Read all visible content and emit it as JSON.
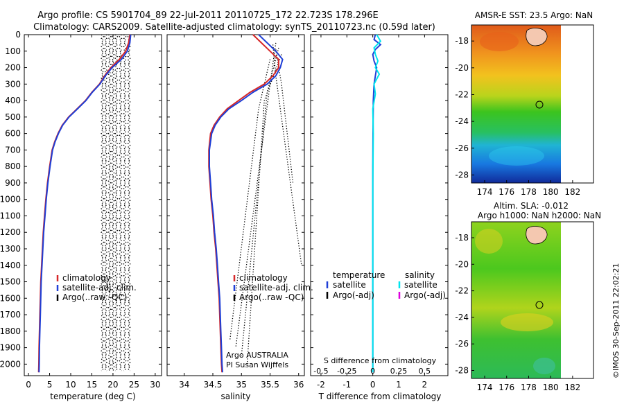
{
  "header": {
    "line1": "Argo profile: CS 5901704_89 22-Jul-2011 20110725_172 22.723S 178.296E",
    "line2": "Climatology: CARS2009. Satellite-adjusted climatology: synTS_20110723.nc (0.59d later)"
  },
  "footer_vertical": "©IMOS 30-Sep-2011 22:02:21",
  "colors": {
    "climatology": "#d62728",
    "satellite": "#1f3fd6",
    "argo": "#000000",
    "salinity_sat": "#00e5ee",
    "salinity_argo": "#dd00dd"
  },
  "chart_data": [
    {
      "id": "temperature",
      "type": "line",
      "xlabel": "temperature (deg C)",
      "ylabel": "",
      "xlim": [
        -1,
        31.5
      ],
      "ylim": [
        2070,
        0
      ],
      "xticks": [
        0,
        5,
        10,
        15,
        20,
        25,
        30
      ],
      "yticks": [
        0,
        100,
        200,
        300,
        400,
        500,
        600,
        700,
        800,
        900,
        1000,
        1100,
        1200,
        1300,
        1400,
        1500,
        1600,
        1700,
        1800,
        1900,
        2000
      ],
      "legend": [
        "climatology",
        "satellite-adj. clim.",
        "Argo(..raw -QC)"
      ],
      "series": [
        {
          "name": "climatology",
          "color": "#d62728",
          "points": [
            [
              24.0,
              0
            ],
            [
              23.7,
              50
            ],
            [
              23.0,
              100
            ],
            [
              21.5,
              150
            ],
            [
              19.5,
              200
            ],
            [
              18.0,
              250
            ],
            [
              16.8,
              300
            ],
            [
              15.0,
              350
            ],
            [
              13.5,
              400
            ],
            [
              11.5,
              450
            ],
            [
              9.5,
              500
            ],
            [
              8.0,
              550
            ],
            [
              7.0,
              600
            ],
            [
              6.2,
              650
            ],
            [
              5.6,
              700
            ],
            [
              5.0,
              800
            ],
            [
              4.5,
              900
            ],
            [
              4.1,
              1000
            ],
            [
              3.8,
              1100
            ],
            [
              3.5,
              1200
            ],
            [
              3.3,
              1300
            ],
            [
              3.1,
              1400
            ],
            [
              2.9,
              1500
            ],
            [
              2.8,
              1600
            ],
            [
              2.7,
              1700
            ],
            [
              2.6,
              1800
            ],
            [
              2.5,
              1900
            ],
            [
              2.45,
              2000
            ],
            [
              2.4,
              2050
            ]
          ]
        },
        {
          "name": "satellite-adj. clim.",
          "color": "#1f3fd6",
          "points": [
            [
              24.2,
              0
            ],
            [
              24.0,
              50
            ],
            [
              23.4,
              100
            ],
            [
              22.0,
              150
            ],
            [
              19.8,
              200
            ],
            [
              18.2,
              250
            ],
            [
              16.9,
              300
            ],
            [
              15.1,
              350
            ],
            [
              13.6,
              400
            ],
            [
              11.6,
              450
            ],
            [
              9.6,
              500
            ],
            [
              8.1,
              550
            ],
            [
              7.1,
              600
            ],
            [
              6.3,
              650
            ],
            [
              5.7,
              700
            ],
            [
              5.1,
              800
            ],
            [
              4.6,
              900
            ],
            [
              4.2,
              1000
            ],
            [
              3.9,
              1100
            ],
            [
              3.6,
              1200
            ],
            [
              3.4,
              1300
            ],
            [
              3.2,
              1400
            ],
            [
              3.0,
              1500
            ],
            [
              2.9,
              1600
            ],
            [
              2.8,
              1700
            ],
            [
              2.7,
              1800
            ],
            [
              2.6,
              1900
            ],
            [
              2.55,
              2000
            ],
            [
              2.5,
              2050
            ]
          ]
        }
      ],
      "argo_dotted_columns": [
        17.5,
        18.3,
        19.2,
        20.0,
        20.8,
        21.8,
        22.8,
        23.8
      ],
      "argo_depth_range": [
        0,
        2040
      ]
    },
    {
      "id": "salinity",
      "type": "line",
      "xlabel": "salinity",
      "xlim": [
        33.7,
        36.1
      ],
      "ylim": [
        2070,
        0
      ],
      "xticks": [
        34,
        34.5,
        35,
        35.5,
        36
      ],
      "legend": [
        "climatology",
        "satellite-adj. clim.",
        "Argo(..raw -QC)"
      ],
      "annotation": [
        "Argo AUSTRALIA",
        "PI Susan Wijffels"
      ],
      "series": [
        {
          "name": "climatology",
          "color": "#d62728",
          "points": [
            [
              35.2,
              0
            ],
            [
              35.35,
              50
            ],
            [
              35.5,
              100
            ],
            [
              35.65,
              150
            ],
            [
              35.65,
              200
            ],
            [
              35.55,
              250
            ],
            [
              35.4,
              300
            ],
            [
              35.15,
              350
            ],
            [
              34.95,
              400
            ],
            [
              34.75,
              450
            ],
            [
              34.62,
              500
            ],
            [
              34.52,
              550
            ],
            [
              34.46,
              600
            ],
            [
              34.43,
              700
            ],
            [
              34.43,
              800
            ],
            [
              34.45,
              900
            ],
            [
              34.47,
              1000
            ],
            [
              34.5,
              1100
            ],
            [
              34.52,
              1200
            ],
            [
              34.55,
              1300
            ],
            [
              34.57,
              1400
            ],
            [
              34.59,
              1500
            ],
            [
              34.61,
              1600
            ],
            [
              34.62,
              1700
            ],
            [
              34.63,
              1800
            ],
            [
              34.64,
              1900
            ],
            [
              34.65,
              2000
            ],
            [
              34.66,
              2050
            ]
          ]
        },
        {
          "name": "satellite-adj. clim.",
          "color": "#1f3fd6",
          "points": [
            [
              35.3,
              0
            ],
            [
              35.45,
              50
            ],
            [
              35.6,
              100
            ],
            [
              35.72,
              150
            ],
            [
              35.68,
              200
            ],
            [
              35.6,
              250
            ],
            [
              35.45,
              300
            ],
            [
              35.2,
              350
            ],
            [
              35.0,
              400
            ],
            [
              34.78,
              450
            ],
            [
              34.64,
              500
            ],
            [
              34.54,
              550
            ],
            [
              34.48,
              600
            ],
            [
              34.44,
              700
            ],
            [
              34.44,
              800
            ],
            [
              34.46,
              900
            ],
            [
              34.48,
              1000
            ],
            [
              34.51,
              1100
            ],
            [
              34.53,
              1200
            ],
            [
              34.56,
              1300
            ],
            [
              34.58,
              1400
            ],
            [
              34.6,
              1500
            ],
            [
              34.62,
              1600
            ],
            [
              34.63,
              1700
            ],
            [
              34.64,
              1800
            ],
            [
              34.65,
              1900
            ],
            [
              34.66,
              2000
            ],
            [
              34.67,
              2050
            ]
          ]
        }
      ]
    },
    {
      "id": "difference",
      "type": "line",
      "xlabel": "T difference from climatology",
      "xlabel_top": "S difference from climatology",
      "xlim": [
        -2.4,
        2.9
      ],
      "ylim": [
        2070,
        0
      ],
      "xticks": [
        -2,
        -1,
        0,
        1,
        2
      ],
      "xticks_s": [
        -0.5,
        -0.25,
        0,
        0.25,
        0.5
      ],
      "legend_headers": [
        "temperature",
        "salinity"
      ],
      "legend_left": [
        "satellite",
        "Argo(-adj)"
      ],
      "legend_right": [
        "satellite",
        "Argo(-adj)"
      ],
      "series": [
        {
          "name": "temperature satellite",
          "color": "#1f3fd6",
          "points": [
            [
              0.1,
              0
            ],
            [
              0.05,
              30
            ],
            [
              0.3,
              60
            ],
            [
              0.1,
              90
            ],
            [
              0.0,
              120
            ],
            [
              0.05,
              160
            ],
            [
              0.15,
              200
            ],
            [
              0.1,
              250
            ],
            [
              0.05,
              300
            ],
            [
              0.02,
              400
            ],
            [
              0.01,
              600
            ],
            [
              0.0,
              800
            ],
            [
              0.0,
              1200
            ],
            [
              0.0,
              1600
            ],
            [
              0.0,
              2050
            ]
          ]
        },
        {
          "name": "salinity satellite",
          "color": "#00e5ee",
          "points": [
            [
              0.15,
              0
            ],
            [
              0.3,
              40
            ],
            [
              0.05,
              80
            ],
            [
              0.1,
              120
            ],
            [
              0.2,
              160
            ],
            [
              0.1,
              200
            ],
            [
              0.25,
              240
            ],
            [
              0.05,
              300
            ],
            [
              0.1,
              360
            ],
            [
              0.0,
              450
            ],
            [
              0.02,
              600
            ],
            [
              0.0,
              900
            ],
            [
              0.0,
              1300
            ],
            [
              0.0,
              2050
            ]
          ]
        }
      ]
    },
    {
      "id": "sst_map",
      "type": "heatmap",
      "title": "AMSR-E SST: 23.5  Argo: NaN",
      "xticks": [
        174,
        176,
        178,
        180,
        182
      ],
      "yticks": [
        -18,
        -20,
        -22,
        -24,
        -26,
        -28
      ],
      "xlim": [
        172.8,
        183.9
      ],
      "ylim": [
        -28.6,
        -16.8
      ],
      "marker": {
        "lon": 178.296,
        "lat": -22.723
      }
    },
    {
      "id": "sla_map",
      "type": "heatmap",
      "title": "Altim. SLA: -0.012",
      "subtitle": "Argo h1000: NaN h2000: NaN",
      "xticks": [
        174,
        176,
        178,
        180,
        182
      ],
      "yticks": [
        -18,
        -20,
        -22,
        -24,
        -26,
        -28
      ],
      "xlim": [
        172.8,
        183.9
      ],
      "ylim": [
        -28.6,
        -16.8
      ],
      "marker": {
        "lon": 178.296,
        "lat": -22.723
      }
    }
  ]
}
